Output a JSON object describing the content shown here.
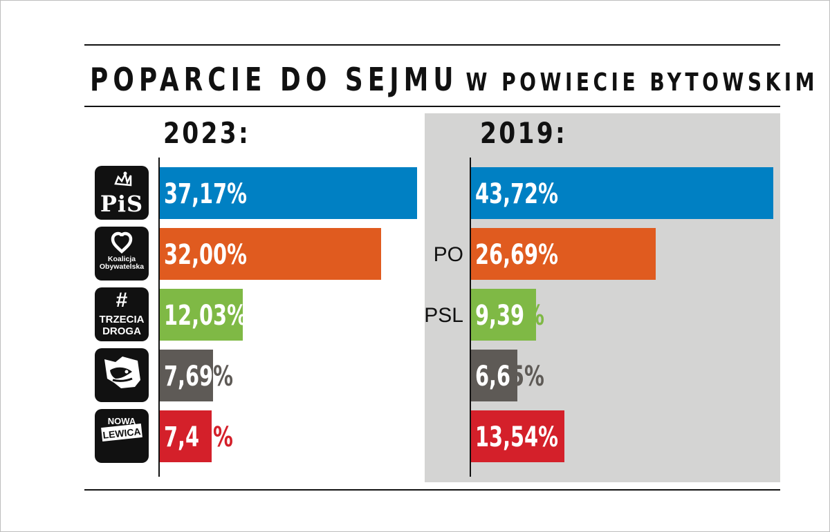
{
  "title": {
    "main": "POPARCIE DO SEJMU",
    "sub": "W POWIECIE BYTOWSKIM"
  },
  "parties": [
    {
      "logo": "pis-logo",
      "logo_text": "PiS",
      "color": "#0080c3"
    },
    {
      "logo": "ko-logo",
      "logo_text": "Koalicja Obywatelska",
      "color": "#e05b1f"
    },
    {
      "logo": "td-logo",
      "logo_text": "# TRZECIA DROGA",
      "color": "#7fb945"
    },
    {
      "logo": "konfederacja-logo",
      "logo_text": "",
      "color": "#5e5a56"
    },
    {
      "logo": "lewica-logo",
      "logo_text": "NOWA LEWICA",
      "color": "#d4202a"
    }
  ],
  "chart_data": [
    {
      "type": "bar",
      "title": "2023:",
      "categories": [
        "PiS",
        "Koalicja Obywatelska",
        "Trzecia Droga",
        "Konfederacja",
        "Nowa Lewica"
      ],
      "values": [
        37.17,
        32.0,
        12.03,
        7.69,
        7.45
      ],
      "labels": [
        "37,17%",
        "32,00%",
        "12,03%",
        "7,69%",
        "7,45%"
      ],
      "orientation": "horizontal",
      "xlim": [
        0,
        45
      ],
      "grid": false
    },
    {
      "type": "bar",
      "title": "2019:",
      "categories": [
        "PiS",
        "PO",
        "PSL",
        "Konfederacja",
        "Lewica"
      ],
      "row_names": [
        "",
        "PO",
        "PSL",
        "",
        ""
      ],
      "values": [
        43.72,
        26.69,
        9.39,
        6.65,
        13.54
      ],
      "labels": [
        "43,72%",
        "26,69%",
        "9,39%",
        "6,65%",
        "13,54%"
      ],
      "orientation": "horizontal",
      "xlim": [
        0,
        45
      ],
      "grid": false
    }
  ]
}
